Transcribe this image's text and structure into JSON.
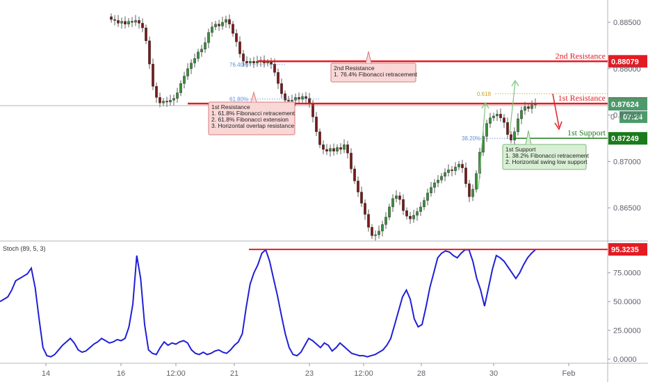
{
  "chart_data": [
    {
      "type": "candlestick",
      "y_axis": {
        "ticks": [
          "0.88500",
          "0.88000",
          "0.87500",
          "0.87000",
          "0.86500"
        ],
        "tick_values": [
          0.885,
          0.88,
          0.875,
          0.87,
          0.865
        ],
        "ylim": [
          0.8615,
          0.8874
        ]
      },
      "x_axis": {
        "labels": [
          "14",
          "16",
          "12:00",
          "21",
          "23",
          "12:00",
          "28",
          "30",
          "Feb"
        ]
      },
      "price_path": [
        0.8853,
        0.8852,
        0.8849,
        0.8851,
        0.8848,
        0.8851,
        0.885,
        0.8852,
        0.8849,
        0.8844,
        0.883,
        0.8805,
        0.8781,
        0.8769,
        0.8763,
        0.8765,
        0.8764,
        0.8766,
        0.8768,
        0.8774,
        0.8784,
        0.8792,
        0.88,
        0.8806,
        0.8811,
        0.8818,
        0.8821,
        0.8828,
        0.8839,
        0.8845,
        0.8848,
        0.8846,
        0.885,
        0.8853,
        0.8848,
        0.8838,
        0.8829,
        0.8816,
        0.8808,
        0.8806,
        0.8808,
        0.8806,
        0.8808,
        0.8809,
        0.8806,
        0.8807,
        0.8805,
        0.8796,
        0.8784,
        0.8773,
        0.8766,
        0.8765,
        0.8766,
        0.8769,
        0.8767,
        0.877,
        0.8768,
        0.8762,
        0.8748,
        0.8732,
        0.8718,
        0.8713,
        0.8711,
        0.8714,
        0.8711,
        0.8715,
        0.8713,
        0.8718,
        0.8709,
        0.8692,
        0.8679,
        0.8667,
        0.8655,
        0.8643,
        0.8629,
        0.862,
        0.8621,
        0.8625,
        0.8632,
        0.864,
        0.8651,
        0.866,
        0.8663,
        0.8659,
        0.8647,
        0.8641,
        0.8638,
        0.8642,
        0.8646,
        0.8651,
        0.8658,
        0.8666,
        0.8672,
        0.8677,
        0.868,
        0.8684,
        0.8688,
        0.8691,
        0.869,
        0.8694,
        0.8697,
        0.8693,
        0.8676,
        0.8662,
        0.867,
        0.8687,
        0.871,
        0.8727,
        0.8741,
        0.8747,
        0.8749,
        0.8751,
        0.8747,
        0.8742,
        0.8729,
        0.8723,
        0.8732,
        0.8746,
        0.8755,
        0.8759,
        0.8757,
        0.8761,
        0.8762
      ],
      "levels": [
        {
          "name": "2nd Resistance",
          "tag": "0.88079",
          "value": 0.88079,
          "color": "#e31b23"
        },
        {
          "name": "1st Resistance",
          "tag": "0.87624",
          "value": 0.87624,
          "color": "#e31b23"
        },
        {
          "name": "1st Support",
          "tag": "0.87249",
          "value": 0.87249,
          "color": "#1b7a1b"
        }
      ],
      "fib_labels": [
        "76.40%",
        "61.80%",
        "0.618",
        "38.20%"
      ],
      "price_tag": {
        "value": "0.87624",
        "countdown": "07:24",
        "partial": "0"
      },
      "annotations": [
        {
          "id": "res2",
          "lines": [
            "2nd Resistance",
            "1. 76.4% Fibonacci retracement"
          ]
        },
        {
          "id": "res1",
          "lines": [
            "1st Resistance",
            "1. 61.8% Fibonacci retracement",
            "2. 61.8% Fibonacci extension",
            "3. Horizontal overlap resistance"
          ]
        },
        {
          "id": "sup1",
          "lines": [
            "1st Support",
            "1. 38.2% Fibonacci retracement",
            "2. Horizontal swing low support"
          ]
        }
      ]
    },
    {
      "type": "line",
      "title": "Stoch (89, 5, 3)",
      "y_axis": {
        "ticks": [
          "75.0000",
          "50.0000",
          "25.0000",
          "0.0000"
        ],
        "tick_values": [
          75,
          50,
          25,
          0
        ],
        "ylim": [
          -3,
          102
        ]
      },
      "level": {
        "tag": "95.3235",
        "value": 95.3235
      },
      "values": [
        50,
        52,
        54,
        60,
        68,
        70,
        72,
        74,
        79,
        62,
        35,
        10,
        3,
        2,
        4,
        8,
        12,
        15,
        18,
        14,
        8,
        6,
        7,
        10,
        13,
        15,
        18,
        16,
        14,
        15,
        17,
        16,
        18,
        28,
        48,
        90,
        70,
        30,
        8,
        5,
        4,
        10,
        15,
        12,
        14,
        13,
        15,
        16,
        14,
        8,
        5,
        4,
        6,
        4,
        5,
        7,
        8,
        6,
        5,
        8,
        12,
        15,
        22,
        45,
        65,
        75,
        82,
        92,
        95,
        85,
        70,
        55,
        38,
        22,
        10,
        4,
        3,
        6,
        12,
        18,
        16,
        13,
        10,
        14,
        12,
        7,
        10,
        14,
        11,
        8,
        5,
        4,
        3,
        3,
        2,
        3,
        4,
        6,
        8,
        12,
        18,
        30,
        42,
        54,
        60,
        52,
        35,
        28,
        30,
        45,
        62,
        75,
        88,
        92,
        94,
        93,
        90,
        88,
        92,
        95,
        95,
        85,
        70,
        60,
        46,
        62,
        78,
        90,
        88,
        85,
        80,
        75,
        70,
        75,
        82,
        88,
        92,
        95
      ],
      "color": "#1f1fd6"
    }
  ]
}
